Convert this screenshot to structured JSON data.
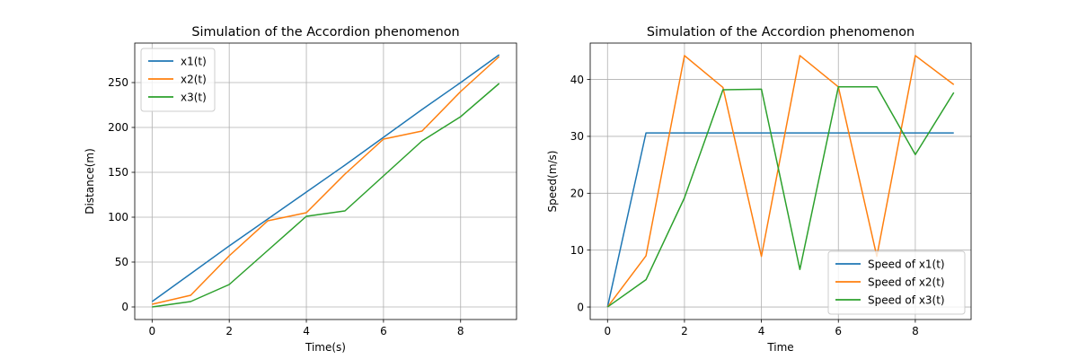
{
  "chart_data": [
    {
      "type": "line",
      "title": "Simulation of the Accordion phenomenon",
      "xlabel": "Time(s)",
      "ylabel": "Distance(m)",
      "xlim": [
        -0.45,
        9.45
      ],
      "ylim": [
        -14,
        294
      ],
      "xticks": [
        0,
        2,
        4,
        6,
        8
      ],
      "yticks": [
        0,
        50,
        100,
        150,
        200,
        250
      ],
      "grid": true,
      "legend_position": "upper-left",
      "x": [
        0,
        1,
        2,
        3,
        4,
        5,
        6,
        7,
        8,
        9
      ],
      "series": [
        {
          "name": "x1(t)",
          "color": "#1f77b4",
          "values": [
            6,
            37,
            68,
            98,
            128,
            158,
            189,
            220,
            250,
            281
          ]
        },
        {
          "name": "x2(t)",
          "color": "#ff7f0e",
          "values": [
            3,
            13,
            57,
            96,
            105,
            148,
            187,
            196,
            240,
            279
          ]
        },
        {
          "name": "x3(t)",
          "color": "#2ca02c",
          "values": [
            0,
            6,
            25,
            63,
            101,
            107,
            146,
            185,
            212,
            249
          ]
        }
      ]
    },
    {
      "type": "line",
      "title": "Simulation of the Accordion phenomenon",
      "xlabel": "Time",
      "ylabel": "Speed(m/s)",
      "xlim": [
        -0.45,
        9.45
      ],
      "ylim": [
        -2.2,
        46.4
      ],
      "xticks": [
        0,
        2,
        4,
        6,
        8
      ],
      "yticks": [
        0,
        10,
        20,
        30,
        40
      ],
      "grid": true,
      "legend_position": "lower-right",
      "x": [
        0,
        1,
        2,
        3,
        4,
        5,
        6,
        7,
        8,
        9
      ],
      "series": [
        {
          "name": "Speed of x1(t)",
          "color": "#1f77b4",
          "values": [
            0,
            30.6,
            30.6,
            30.6,
            30.6,
            30.6,
            30.6,
            30.6,
            30.6,
            30.6
          ]
        },
        {
          "name": "Speed of x2(t)",
          "color": "#ff7f0e",
          "values": [
            0,
            9,
            44.2,
            38.6,
            8.9,
            44.2,
            38.7,
            8.9,
            44.2,
            39.1
          ]
        },
        {
          "name": "Speed of x3(t)",
          "color": "#2ca02c",
          "values": [
            0,
            4.8,
            19.2,
            38.2,
            38.3,
            6.6,
            38.7,
            38.7,
            26.8,
            37.7
          ]
        }
      ]
    }
  ]
}
